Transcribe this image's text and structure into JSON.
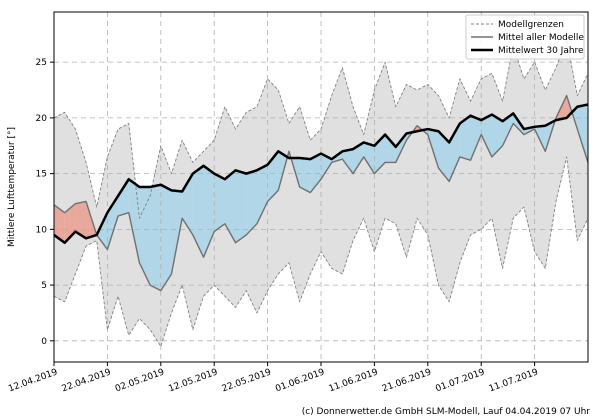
{
  "chart_data": {
    "type": "band-line",
    "ylabel": "Mittlere Lufttemperatur [°]",
    "footer": "(c) Donnerwetter.de GmbH SLM-Modell, Lauf 04.04.2019 07 Uhr",
    "x": [
      "2019-04-12",
      "2019-04-14",
      "2019-04-16",
      "2019-04-18",
      "2019-04-20",
      "2019-04-22",
      "2019-04-24",
      "2019-04-26",
      "2019-04-28",
      "2019-04-30",
      "2019-05-02",
      "2019-05-04",
      "2019-05-06",
      "2019-05-08",
      "2019-05-10",
      "2019-05-12",
      "2019-05-14",
      "2019-05-16",
      "2019-05-18",
      "2019-05-20",
      "2019-05-22",
      "2019-05-24",
      "2019-05-26",
      "2019-05-28",
      "2019-05-30",
      "2019-06-01",
      "2019-06-03",
      "2019-06-05",
      "2019-06-07",
      "2019-06-09",
      "2019-06-11",
      "2019-06-13",
      "2019-06-15",
      "2019-06-17",
      "2019-06-19",
      "2019-06-21",
      "2019-06-23",
      "2019-06-25",
      "2019-06-27",
      "2019-06-29",
      "2019-07-01",
      "2019-07-03",
      "2019-07-05",
      "2019-07-07",
      "2019-07-09",
      "2019-07-11",
      "2019-07-13",
      "2019-07-15",
      "2019-07-17",
      "2019-07-19",
      "2019-07-21"
    ],
    "series": [
      {
        "name": "Modellgrenzen",
        "color": "#808080",
        "style": "dashed",
        "fill": "#e0e0e0",
        "lower": [
          4,
          3.5,
          6,
          8.5,
          9,
          1,
          4,
          0.5,
          2,
          1,
          -0.5,
          2.5,
          5,
          1,
          4,
          5,
          4,
          3,
          4.5,
          2.5,
          4.5,
          6,
          7,
          3.5,
          6,
          8,
          6.5,
          6,
          9,
          11,
          8,
          11,
          10.5,
          7.5,
          11,
          9.5,
          5,
          3.5,
          7,
          9.5,
          10,
          11,
          6.5,
          11,
          12,
          8,
          6.5,
          12.5,
          16.5,
          9,
          11
        ],
        "upper": [
          20,
          20.5,
          19,
          16,
          12,
          16.5,
          19,
          19.5,
          11,
          13,
          17.5,
          15,
          18,
          16,
          17,
          18,
          21,
          19,
          20.5,
          21,
          23.5,
          22.5,
          19.5,
          21,
          18,
          19,
          22,
          24.5,
          21,
          18.5,
          22.5,
          25,
          21,
          23,
          22.5,
          23,
          22,
          20,
          23.5,
          21.5,
          23.5,
          24,
          21.5,
          26.5,
          23.5,
          25,
          22.5,
          24.5,
          27,
          22,
          24
        ]
      },
      {
        "name": "Mittel aller Modelle",
        "color": "#707070",
        "style": "solid",
        "values": [
          12.2,
          11.5,
          12.3,
          12.5,
          9.5,
          8.2,
          11.2,
          11.5,
          7,
          5,
          4.5,
          6,
          11,
          9.5,
          7.5,
          9.8,
          10.5,
          8.8,
          9.5,
          10.5,
          12.5,
          13.5,
          17,
          13.8,
          13.3,
          14.5,
          16,
          16.3,
          15,
          16.5,
          15,
          16,
          16,
          18,
          19.3,
          18.5,
          15.5,
          14.3,
          16.5,
          16.2,
          18.5,
          16.5,
          17.5,
          19.5,
          18.5,
          19,
          17,
          20,
          22,
          19,
          16
        ]
      },
      {
        "name": "Mittelwert 30 Jahre",
        "color": "#000000",
        "style": "bold",
        "values": [
          9.5,
          8.8,
          9.8,
          9.2,
          9.5,
          11.5,
          13,
          14.5,
          13.8,
          13.8,
          14,
          13.5,
          13.4,
          15,
          15.7,
          15,
          14.5,
          15.3,
          15,
          15.3,
          15.8,
          17,
          16.4,
          16.4,
          16.3,
          16.8,
          16.3,
          17,
          17.2,
          17.8,
          17.5,
          18.5,
          17.4,
          18.6,
          18.8,
          19,
          18.8,
          17.8,
          19.5,
          20.2,
          19.8,
          20.3,
          19.7,
          20.4,
          19,
          19.2,
          19.3,
          19.8,
          20,
          21,
          21.2
        ]
      }
    ],
    "above_color": "#e8a89c",
    "below_color": "#b0d6e8",
    "xlim": [
      "2019-04-12",
      "2019-07-21"
    ],
    "xticks": [
      {
        "value": "2019-04-12",
        "label": "12.04.2019"
      },
      {
        "value": "2019-04-22",
        "label": "22.04.2019"
      },
      {
        "value": "2019-05-02",
        "label": "02.05.2019"
      },
      {
        "value": "2019-05-12",
        "label": "12.05.2019"
      },
      {
        "value": "2019-05-22",
        "label": "22.05.2019"
      },
      {
        "value": "2019-06-01",
        "label": "01.06.2019"
      },
      {
        "value": "2019-06-11",
        "label": "11.06.2019"
      },
      {
        "value": "2019-06-21",
        "label": "21.06.2019"
      },
      {
        "value": "2019-07-01",
        "label": "01.07.2019"
      },
      {
        "value": "2019-07-11",
        "label": "11.07.2019"
      }
    ],
    "ylim": [
      -1.9,
      29.5
    ],
    "yticks": [
      0,
      5,
      10,
      15,
      20,
      25
    ],
    "grid": true,
    "legend": "upper right"
  }
}
